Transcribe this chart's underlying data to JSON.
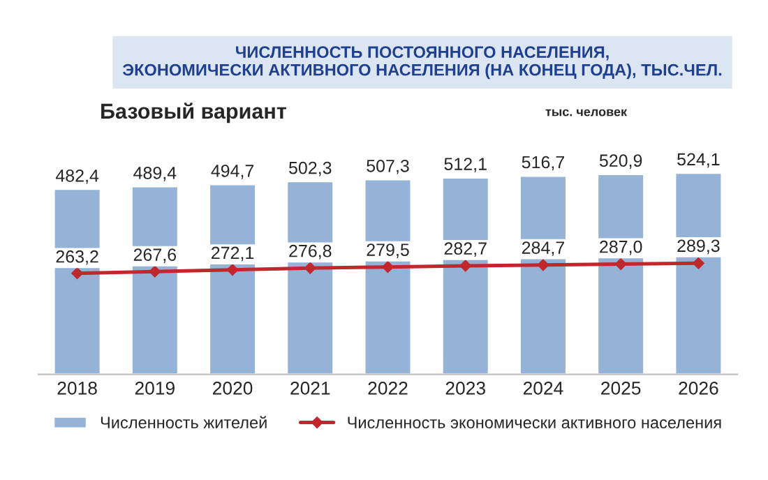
{
  "chart_data": {
    "type": "bar",
    "title": "ЧИСЛЕННОСТЬ ПОСТОЯННОГО НАСЕЛЕНИЯ,\nЭКОНОМИЧЕСКИ АКТИВНОГО НАСЕЛЕНИЯ (НА КОНЕЦ ГОДА), ТЫС.ЧЕЛ.",
    "subtitle": "Базовый вариант",
    "annotations": [
      "тыс. человек"
    ],
    "categories": [
      "2018",
      "2019",
      "2020",
      "2021",
      "2022",
      "2023",
      "2024",
      "2025",
      "2026"
    ],
    "series": [
      {
        "name": "Численность жителей",
        "color": "#95b3d7",
        "values": [
          482.4,
          489.4,
          494.7,
          502.3,
          507.3,
          512.1,
          516.7,
          520.9,
          524.1
        ],
        "value_labels": [
          "482,4",
          "489,4",
          "494,7",
          "502,3",
          "507,3",
          "512,1",
          "516,7",
          "520,9",
          "524,1"
        ]
      },
      {
        "name": "Численность экономически активного населения",
        "type": "line",
        "color": "#c0282d",
        "marker": "diamond",
        "values": [
          263.2,
          267.6,
          272.1,
          276.8,
          279.5,
          282.7,
          284.7,
          287.0,
          289.3
        ],
        "value_labels": [
          "263,2",
          "267,6",
          "272,1",
          "276,8",
          "279,5",
          "282,7",
          "284,7",
          "287,0",
          "289,3"
        ]
      }
    ],
    "legend": "bottom",
    "grid": false,
    "tick_labels": "x"
  }
}
